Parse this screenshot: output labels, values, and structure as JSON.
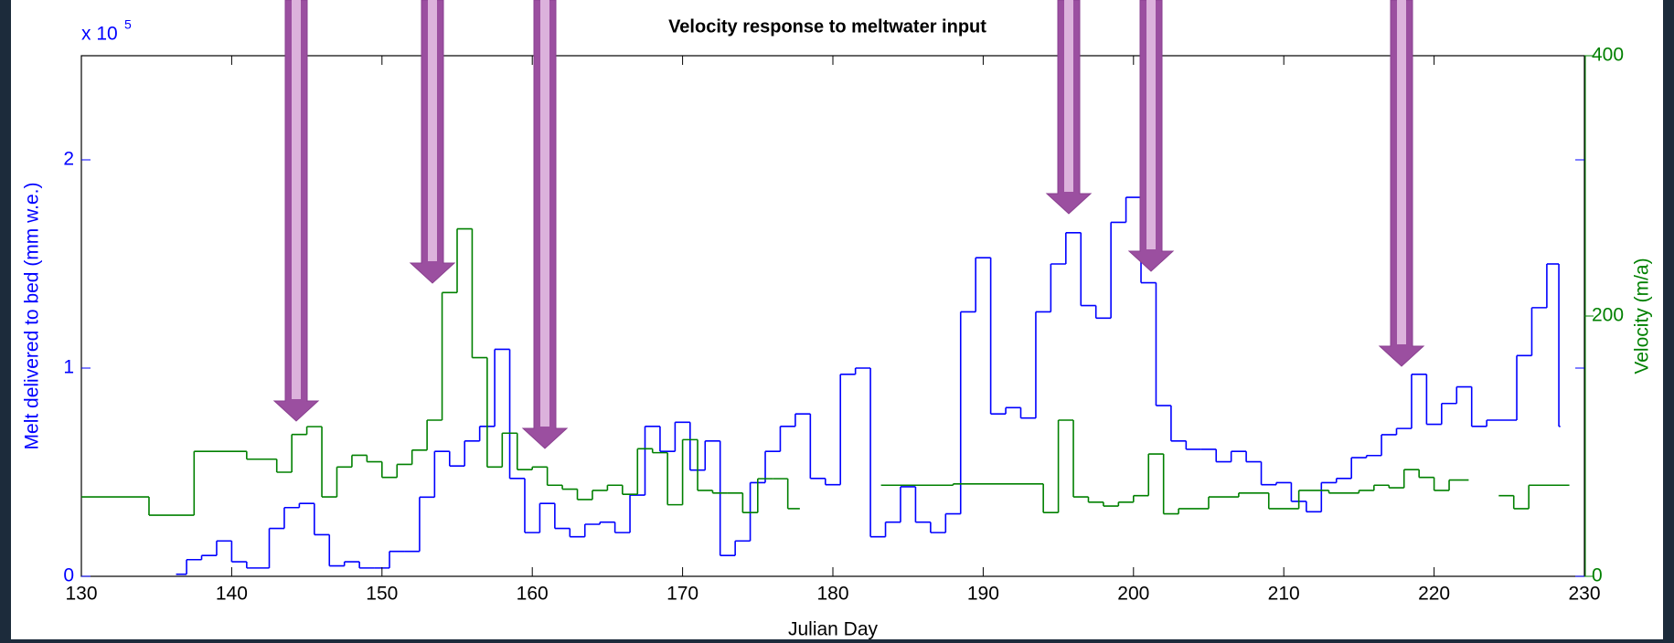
{
  "chart_data": {
    "type": "step",
    "title": "Velocity response to meltwater input",
    "x_label": "Julian Day",
    "y_label": "Melt delivered to bed (mm w.e.)",
    "y2_label": "Velocity (m/a)",
    "y_multiplier": {
      "base": "x 10",
      "exponent": "5"
    },
    "xlim": [
      130,
      230
    ],
    "xticks": [
      130,
      140,
      150,
      160,
      170,
      180,
      190,
      200,
      210,
      220,
      230
    ],
    "ylim": [
      0,
      2.5
    ],
    "yticks": [
      0,
      1,
      2
    ],
    "y2lim": [
      0,
      400
    ],
    "y2ticks": [
      0,
      200,
      400
    ],
    "series": [
      {
        "name": "Melt delivered to bed",
        "color": "#0000ff",
        "axis": "y",
        "x": [
          136.3,
          137,
          138,
          139,
          140,
          141,
          142.5,
          143.5,
          144.5,
          145.5,
          146.5,
          147.5,
          148.5,
          149.5,
          150.5,
          151.5,
          152.5,
          153.5,
          154.5,
          155.5,
          156.5,
          157.5,
          158.5,
          159.5,
          160.5,
          161.5,
          162.5,
          163.5,
          164.5,
          165.5,
          166.5,
          167.5,
          168.5,
          169.5,
          170.5,
          171.5,
          172.5,
          173.5,
          174.5,
          175.5,
          176.5,
          177.5,
          178.5,
          179.5,
          180.5,
          181.5,
          182.5,
          183.5,
          184.5,
          185.5,
          186.5,
          187.5,
          188.5,
          189.5,
          190.5,
          191.5,
          192.5,
          193.5,
          194.5,
          195.5,
          196.5,
          197.5,
          198.5,
          199.5,
          200.5,
          201.5,
          202.5,
          203.5,
          204.5,
          205.5,
          206.5,
          207.5,
          208.5,
          209.5,
          210.5,
          211.5,
          212.5,
          213.5,
          214.5,
          215.5,
          216.5,
          217.5,
          218.5,
          219.5,
          220.5,
          221.5,
          222.5,
          223.5,
          225.5,
          226.5,
          227.5,
          228.3,
          228.4
        ],
        "values": [
          0.01,
          0.08,
          0.1,
          0.17,
          0.07,
          0.04,
          0.23,
          0.33,
          0.35,
          0.2,
          0.05,
          0.07,
          0.04,
          0.04,
          0.12,
          0.12,
          0.38,
          0.6,
          0.53,
          0.65,
          0.72,
          1.09,
          0.47,
          0.21,
          0.35,
          0.23,
          0.19,
          0.25,
          0.26,
          0.21,
          0.39,
          0.72,
          0.6,
          0.74,
          0.51,
          0.65,
          0.1,
          0.17,
          0.45,
          0.6,
          0.72,
          0.78,
          0.47,
          0.44,
          0.97,
          1.0,
          0.19,
          0.26,
          0.43,
          0.26,
          0.21,
          0.3,
          1.27,
          1.53,
          0.78,
          0.81,
          0.76,
          1.27,
          1.5,
          1.65,
          1.3,
          1.24,
          1.7,
          1.82,
          1.41,
          0.82,
          0.65,
          0.61,
          0.61,
          0.55,
          0.6,
          0.55,
          0.44,
          0.45,
          0.36,
          0.31,
          0.45,
          0.47,
          0.57,
          0.58,
          0.68,
          0.71,
          0.97,
          0.73,
          0.83,
          0.91,
          0.72,
          0.75,
          1.06,
          1.29,
          1.5,
          0.72,
          null
        ]
      },
      {
        "name": "Velocity",
        "color": "#008000",
        "axis": "y2",
        "x": [
          130,
          134.5,
          137.5,
          141,
          143,
          144,
          145,
          146,
          147,
          148,
          149,
          150,
          151,
          152,
          153,
          154,
          155,
          156,
          157,
          158,
          159,
          160,
          161,
          162,
          163,
          164,
          165,
          166,
          167,
          168,
          169,
          170,
          171,
          172,
          173,
          174,
          175,
          176,
          177,
          177.8,
          183.2,
          188,
          194,
          195,
          196,
          197,
          198,
          199,
          200,
          201,
          202,
          203,
          205,
          207,
          209,
          211,
          213,
          215,
          216,
          217,
          218,
          219,
          220,
          221,
          222.3,
          224.3,
          225.3,
          226.3,
          229
        ],
        "values": [
          61,
          47,
          96,
          90,
          80,
          109,
          115,
          61,
          84,
          93,
          88,
          76,
          86,
          97,
          120,
          218,
          267,
          168,
          84,
          110,
          82,
          84,
          70,
          67,
          59,
          66,
          70,
          63,
          98,
          95,
          55,
          105,
          66,
          64,
          64,
          49,
          75,
          75,
          52,
          null,
          70,
          71,
          49,
          120,
          61,
          57,
          54,
          57,
          62,
          94,
          48,
          52,
          61,
          64,
          52,
          66,
          64,
          66,
          70,
          68,
          82,
          76,
          66,
          74,
          null,
          62,
          52,
          70,
          null
        ]
      }
    ]
  }
}
